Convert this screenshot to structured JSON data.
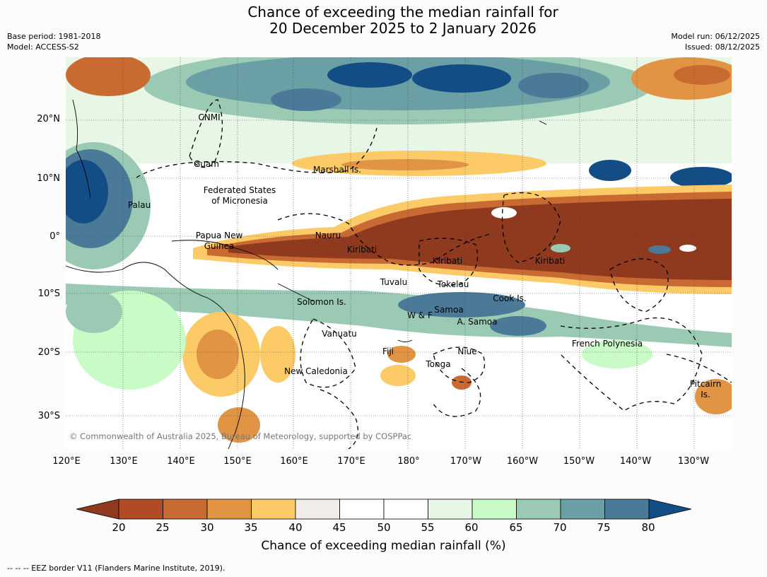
{
  "title_line1": "Chance of exceeding the median rainfall for",
  "title_line2": "20 December 2025 to 2 January 2026",
  "meta_left": {
    "base_period": "Base period: 1981-2018",
    "model": "Model: ACCESS-S2"
  },
  "meta_right": {
    "model_run": "Model run: 06/12/2025",
    "issued": "Issued: 08/12/2025"
  },
  "lat_labels": [
    "20°N",
    "10°N",
    "0°",
    "10°S",
    "20°S",
    "30°S"
  ],
  "lon_labels": [
    "120°E",
    "130°E",
    "140°E",
    "150°E",
    "160°E",
    "170°E",
    "180°",
    "170°W",
    "160°W",
    "150°W",
    "140°W",
    "130°W"
  ],
  "regions": [
    "CNMI",
    "Guam",
    "Marshall Is.",
    "Federated States",
    "of Micronesia",
    "Palau",
    "Papua New",
    "Guinea",
    "Nauru",
    "Kiribati",
    "Kiribati",
    "Kiribati",
    "Tuvalu",
    "Tokelau",
    "Solomon Is.",
    "Cook Is.",
    "Samoa",
    "W & F",
    "A. Samoa",
    "Vanuatu",
    "Fiji",
    "Niue",
    "French Polynesia",
    "Tonga",
    "New Caledonia",
    "Pitcairn",
    "Is."
  ],
  "copyright": "© Commonwealth of Australia 2025, Bureau of Meteorology, supported by COSPPac",
  "colorbar": {
    "ticks": [
      "20",
      "25",
      "30",
      "35",
      "40",
      "45",
      "50",
      "55",
      "60",
      "65",
      "70",
      "75",
      "80"
    ],
    "colors": [
      "#8f3a1f",
      "#b04a27",
      "#c96a33",
      "#e09444",
      "#fccb68",
      "#f0ede8",
      "#ffffff",
      "#ffffff",
      "#e8f6e6",
      "#c8fbc6",
      "#9acab4",
      "#6a9fa6",
      "#4a7a98",
      "#124d85"
    ],
    "label": "Chance of exceeding median rainfall (%)"
  },
  "footnote": "--  --  -- EEZ border V11 (Flanders Marine Institute, 2019)."
}
